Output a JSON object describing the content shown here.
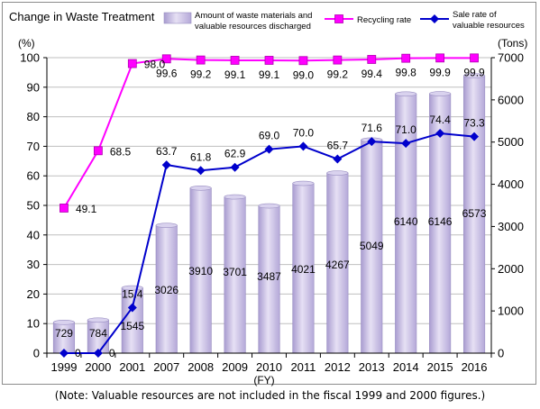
{
  "chart_data": {
    "type": "bar",
    "title": "Change in Waste Treatment",
    "left_unit": "(%)",
    "right_unit": "(Tons)",
    "x_unit": "(FY)",
    "categories": [
      "1999",
      "2000",
      "2001",
      "2007",
      "2008",
      "2009",
      "2010",
      "2011",
      "2012",
      "2013",
      "2014",
      "2015",
      "2016"
    ],
    "y_left_range": [
      0,
      100
    ],
    "y_left_ticks": [
      0,
      10,
      20,
      30,
      40,
      50,
      60,
      70,
      80,
      90,
      100
    ],
    "y_right_range": [
      0,
      7000
    ],
    "y_right_ticks": [
      0,
      1000,
      2000,
      3000,
      4000,
      5000,
      6000,
      7000
    ],
    "grid": "horizontal",
    "legend_position": "top",
    "series": [
      {
        "name": "Amount of waste materials and valuable resources discharged",
        "kind": "bar",
        "axis": "right",
        "color": "#c8bfe2",
        "values": [
          729,
          784,
          1545,
          3026,
          3910,
          3701,
          3487,
          4021,
          4267,
          5049,
          6140,
          6146,
          6573
        ]
      },
      {
        "name": "Recycling rate",
        "kind": "line",
        "axis": "left",
        "color": "#ff00ff",
        "marker": "square",
        "values": [
          49.1,
          68.5,
          98.0,
          99.6,
          99.2,
          99.1,
          99.1,
          99.0,
          99.2,
          99.4,
          99.8,
          99.9,
          99.9
        ]
      },
      {
        "name": "Sale rate of valuable resources",
        "kind": "line",
        "axis": "left",
        "color": "#0000cc",
        "marker": "diamond",
        "values": [
          0,
          0,
          15.4,
          63.7,
          61.8,
          62.9,
          69.0,
          70.0,
          65.7,
          71.6,
          71.0,
          74.4,
          73.3
        ]
      }
    ]
  },
  "note": "(Note: Valuable resources are not included in the fiscal 1999 and 2000 figures.)"
}
